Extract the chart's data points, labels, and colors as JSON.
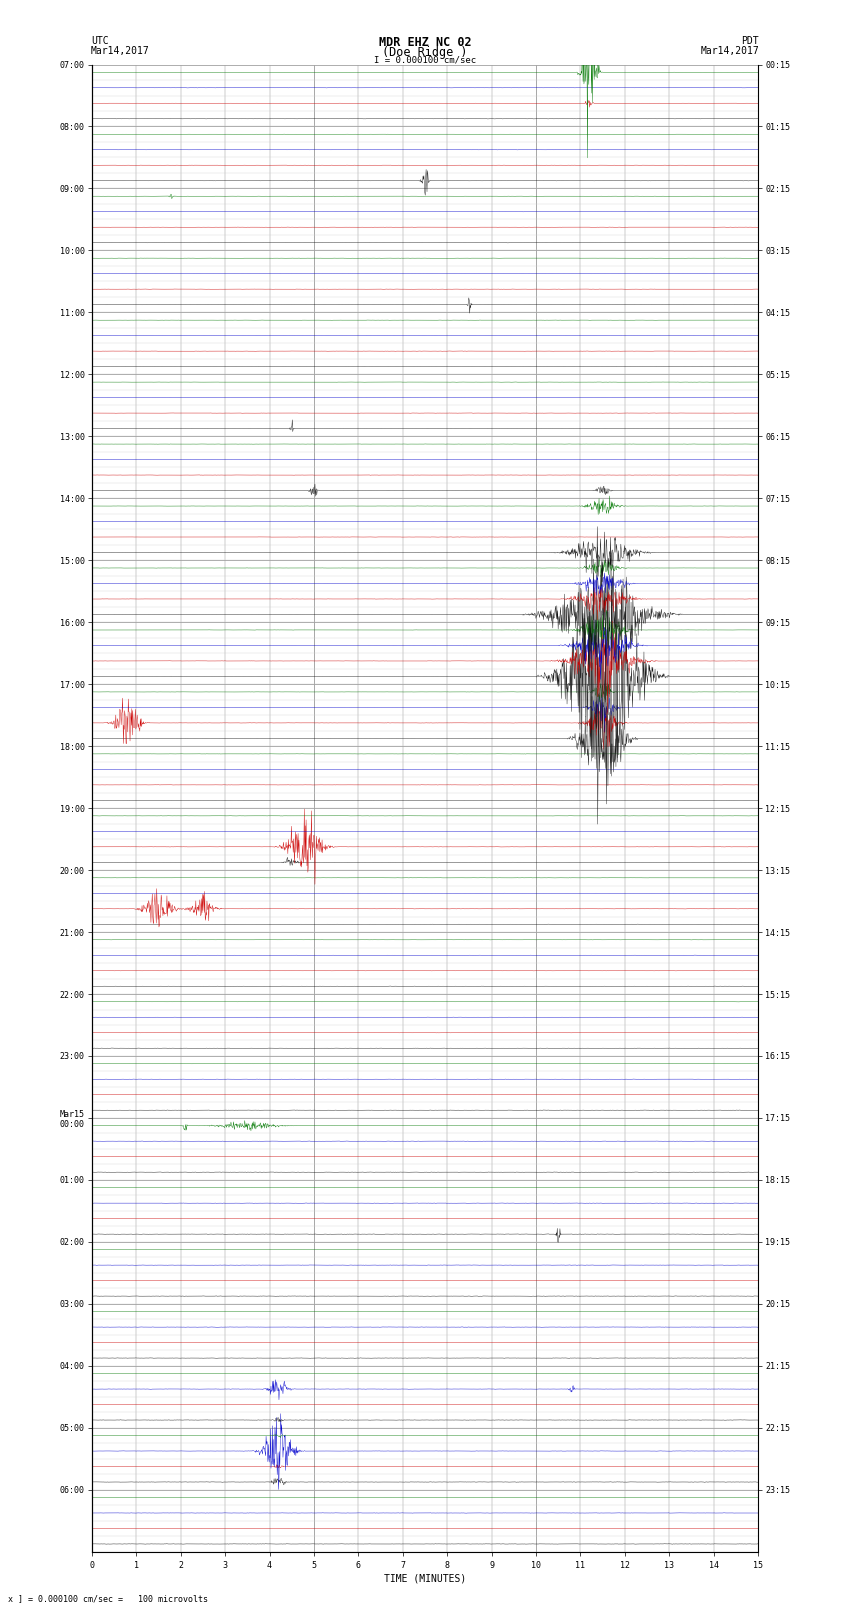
{
  "title_line1": "MDR EHZ NC 02",
  "title_line2": "(Doe Ridge )",
  "scale_label": "I = 0.000100 cm/sec",
  "utc_label": "UTC",
  "pdt_label": "PDT",
  "date_left": "Mar14,2017",
  "date_right": "Mar14,2017",
  "xlabel": "TIME (MINUTES)",
  "footer": "x ] = 0.000100 cm/sec =   100 microvolts",
  "bg_color": "#ffffff",
  "x_min": 0,
  "x_max": 15,
  "n_hours": 24,
  "traces_per_hour": 4,
  "utc_hours": [
    "07:00",
    "08:00",
    "09:00",
    "10:00",
    "11:00",
    "12:00",
    "13:00",
    "14:00",
    "15:00",
    "16:00",
    "17:00",
    "18:00",
    "19:00",
    "20:00",
    "21:00",
    "22:00",
    "23:00",
    "Mar15\n00:00",
    "01:00",
    "02:00",
    "03:00",
    "04:00",
    "05:00",
    "06:00"
  ],
  "pdt_hours": [
    "00:15",
    "01:15",
    "02:15",
    "03:15",
    "04:15",
    "05:15",
    "06:15",
    "07:15",
    "08:15",
    "09:15",
    "10:15",
    "11:15",
    "12:15",
    "13:15",
    "14:15",
    "15:15",
    "16:15",
    "17:15",
    "18:15",
    "19:15",
    "20:15",
    "21:15",
    "22:15",
    "23:15"
  ],
  "colors": {
    "black": "#111111",
    "red": "#cc0000",
    "blue": "#0000cc",
    "green": "#007700"
  },
  "trace_color_order": [
    "black",
    "red",
    "blue",
    "green"
  ],
  "noise_levels": [
    0.018,
    0.012,
    0.015,
    0.01
  ],
  "title_fontsize": 8.5,
  "tick_fontsize": 6.0,
  "label_fontsize": 7.0
}
